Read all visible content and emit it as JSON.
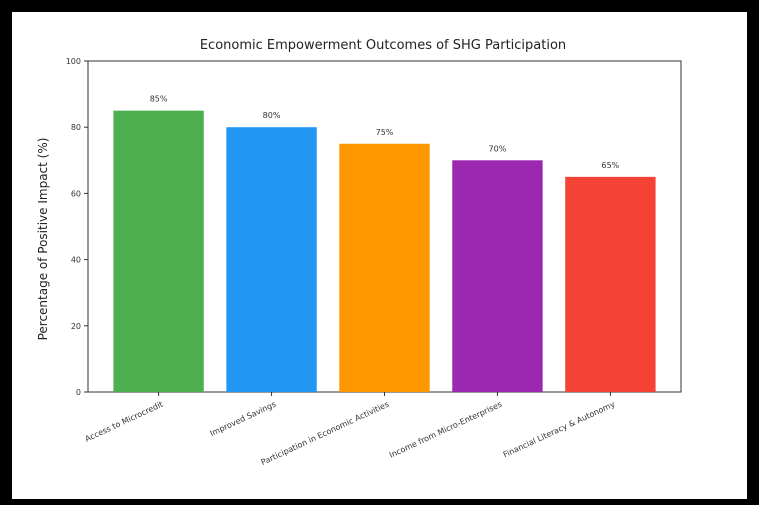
{
  "chart_data": {
    "type": "bar",
    "title": "Economic Empowerment Outcomes of SHG Participation",
    "xlabel": "",
    "ylabel": "Percentage of Positive Impact (%)",
    "ylim": [
      0,
      100
    ],
    "yticks": [
      0,
      20,
      40,
      60,
      80,
      100
    ],
    "categories": [
      "Access to Microcredit",
      "Improved Savings",
      "Participation in Economic Activities",
      "Income from Micro-Enterprises",
      "Financial Literacy & Autonomy"
    ],
    "values": [
      85,
      80,
      75,
      70,
      65
    ],
    "data_labels": [
      "85%",
      "80%",
      "75%",
      "70%",
      "65%"
    ],
    "colors": [
      "#4caf50",
      "#2196f3",
      "#ff9800",
      "#9c27b0",
      "#f44336"
    ],
    "grid": false,
    "legend": "none"
  }
}
